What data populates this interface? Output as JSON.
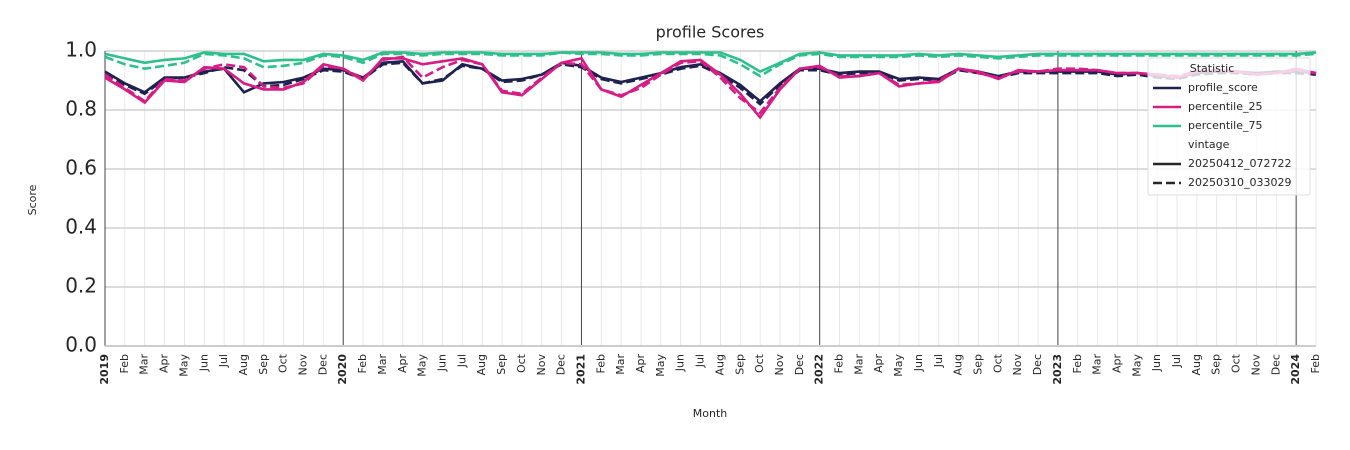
{
  "chart_data": {
    "type": "line",
    "title": "profile Scores",
    "x_label": "Month",
    "y_label": "Score",
    "categories": [
      "2019",
      "Feb",
      "Mar",
      "Apr",
      "May",
      "Jun",
      "Jul",
      "Aug",
      "Sep",
      "Oct",
      "Nov",
      "Dec",
      "2020",
      "Feb",
      "Mar",
      "Apr",
      "May",
      "Jun",
      "Jul",
      "Aug",
      "Sep",
      "Oct",
      "Nov",
      "Dec",
      "2021",
      "Feb",
      "Mar",
      "Apr",
      "May",
      "Jun",
      "Jul",
      "Aug",
      "Sep",
      "Oct",
      "Nov",
      "Dec",
      "2022",
      "Feb",
      "Mar",
      "Apr",
      "May",
      "Jun",
      "Jul",
      "Aug",
      "Sep",
      "Oct",
      "Nov",
      "Dec",
      "2023",
      "Feb",
      "Mar",
      "Apr",
      "May",
      "Jun",
      "Jul",
      "Aug",
      "Sep",
      "Oct",
      "Nov",
      "Dec",
      "2024",
      "Feb"
    ],
    "ylim": [
      0,
      1.0
    ],
    "yticks": [
      {
        "value": 0,
        "label": "0.0"
      },
      0.2,
      0.4,
      0.6,
      0.8,
      {
        "value": 1,
        "label": "1.0"
      }
    ],
    "grid": true,
    "legend_title": "Statistic",
    "vintage_title": "vintage",
    "vintages": [
      {
        "name": "20250412_072722",
        "dash": "solid"
      },
      {
        "name": "20250310_033029",
        "dash": "dashed"
      }
    ],
    "series": [
      {
        "name": "profile_score",
        "color": "#1e2150",
        "vintages": [
          [
            0.93,
            0.89,
            0.86,
            0.91,
            0.91,
            0.93,
            0.94,
            0.86,
            0.89,
            0.895,
            0.91,
            0.94,
            0.935,
            0.91,
            0.96,
            0.965,
            0.89,
            0.9,
            0.955,
            0.94,
            0.9,
            0.905,
            0.92,
            0.96,
            0.95,
            0.91,
            0.895,
            0.91,
            0.925,
            0.945,
            0.955,
            0.925,
            0.885,
            0.83,
            0.89,
            0.94,
            0.94,
            0.925,
            0.93,
            0.93,
            0.905,
            0.91,
            0.905,
            0.94,
            0.93,
            0.915,
            0.93,
            0.93,
            0.93,
            0.93,
            0.93,
            0.92,
            0.925,
            0.915,
            0.91,
            0.925,
            0.93,
            0.93,
            0.925,
            0.93,
            0.93,
            0.925
          ],
          [
            0.92,
            0.885,
            0.855,
            0.905,
            0.91,
            0.925,
            0.945,
            0.935,
            0.88,
            0.885,
            0.905,
            0.935,
            0.93,
            0.905,
            0.955,
            0.96,
            0.89,
            0.905,
            0.95,
            0.94,
            0.895,
            0.9,
            0.92,
            0.955,
            0.945,
            0.905,
            0.89,
            0.905,
            0.92,
            0.94,
            0.95,
            0.92,
            0.875,
            0.82,
            0.885,
            0.935,
            0.935,
            0.92,
            0.925,
            0.925,
            0.9,
            0.905,
            0.9,
            0.935,
            0.925,
            0.91,
            0.925,
            0.925,
            0.925,
            0.925,
            0.925,
            0.915,
            0.92,
            0.91,
            0.905,
            0.92,
            0.925,
            0.925,
            0.92,
            0.925,
            0.925,
            0.92
          ]
        ]
      },
      {
        "name": "percentile_25",
        "color": "#d61c85",
        "vintages": [
          [
            0.91,
            0.87,
            0.825,
            0.9,
            0.895,
            0.945,
            0.94,
            0.89,
            0.87,
            0.87,
            0.895,
            0.955,
            0.94,
            0.9,
            0.975,
            0.975,
            0.955,
            0.965,
            0.975,
            0.955,
            0.86,
            0.85,
            0.905,
            0.96,
            0.975,
            0.87,
            0.845,
            0.885,
            0.925,
            0.965,
            0.97,
            0.92,
            0.855,
            0.775,
            0.87,
            0.94,
            0.95,
            0.91,
            0.915,
            0.925,
            0.88,
            0.89,
            0.895,
            0.94,
            0.93,
            0.905,
            0.935,
            0.93,
            0.935,
            0.935,
            0.935,
            0.925,
            0.925,
            0.92,
            0.91,
            0.93,
            0.935,
            0.93,
            0.92,
            0.925,
            0.94,
            0.925
          ],
          [
            0.92,
            0.875,
            0.83,
            0.905,
            0.9,
            0.94,
            0.955,
            0.945,
            0.88,
            0.875,
            0.89,
            0.95,
            0.94,
            0.905,
            0.97,
            0.98,
            0.91,
            0.945,
            0.97,
            0.955,
            0.865,
            0.855,
            0.91,
            0.96,
            0.955,
            0.87,
            0.85,
            0.875,
            0.92,
            0.96,
            0.965,
            0.91,
            0.84,
            0.79,
            0.875,
            0.94,
            0.945,
            0.915,
            0.915,
            0.925,
            0.885,
            0.89,
            0.9,
            0.94,
            0.925,
            0.91,
            0.93,
            0.93,
            0.94,
            0.94,
            0.935,
            0.925,
            0.925,
            0.92,
            0.915,
            0.93,
            0.935,
            0.93,
            0.92,
            0.925,
            0.935,
            0.925
          ]
        ]
      },
      {
        "name": "percentile_75",
        "color": "#2ec08c",
        "vintages": [
          [
            0.99,
            0.975,
            0.96,
            0.97,
            0.975,
            0.995,
            0.99,
            0.99,
            0.965,
            0.97,
            0.97,
            0.99,
            0.985,
            0.97,
            0.995,
            0.995,
            0.99,
            0.995,
            0.995,
            0.995,
            0.99,
            0.99,
            0.99,
            0.995,
            0.995,
            0.995,
            0.99,
            0.99,
            0.995,
            0.995,
            0.995,
            0.995,
            0.97,
            0.93,
            0.96,
            0.99,
            0.995,
            0.985,
            0.985,
            0.985,
            0.985,
            0.99,
            0.985,
            0.99,
            0.985,
            0.98,
            0.985,
            0.99,
            0.99,
            0.99,
            0.99,
            0.99,
            0.99,
            0.99,
            0.99,
            0.99,
            0.99,
            0.99,
            0.99,
            0.99,
            0.99,
            0.995
          ],
          [
            0.98,
            0.955,
            0.94,
            0.95,
            0.96,
            0.99,
            0.985,
            0.975,
            0.945,
            0.95,
            0.96,
            0.985,
            0.98,
            0.96,
            0.99,
            0.99,
            0.985,
            0.99,
            0.99,
            0.99,
            0.985,
            0.985,
            0.985,
            0.995,
            0.99,
            0.99,
            0.985,
            0.985,
            0.99,
            0.99,
            0.99,
            0.985,
            0.955,
            0.915,
            0.955,
            0.985,
            0.99,
            0.98,
            0.98,
            0.98,
            0.98,
            0.985,
            0.98,
            0.985,
            0.98,
            0.975,
            0.98,
            0.985,
            0.985,
            0.985,
            0.985,
            0.985,
            0.985,
            0.985,
            0.985,
            0.985,
            0.985,
            0.985,
            0.985,
            0.985,
            0.985,
            0.99
          ]
        ]
      }
    ]
  }
}
